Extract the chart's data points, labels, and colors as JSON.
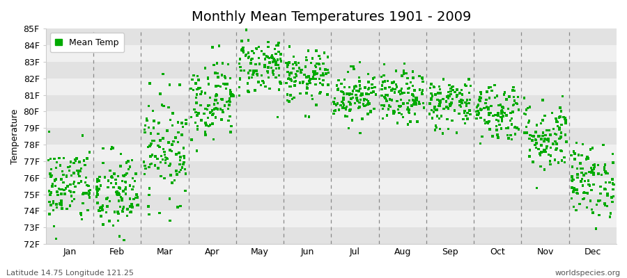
{
  "title": "Monthly Mean Temperatures 1901 - 2009",
  "ylabel": "Temperature",
  "xlabel_labels": [
    "Jan",
    "Feb",
    "Mar",
    "Apr",
    "May",
    "Jun",
    "Jul",
    "Aug",
    "Sep",
    "Oct",
    "Nov",
    "Dec"
  ],
  "ytick_labels": [
    "72F",
    "73F",
    "74F",
    "75F",
    "76F",
    "77F",
    "78F",
    "79F",
    "80F",
    "81F",
    "82F",
    "83F",
    "84F",
    "85F"
  ],
  "ytick_values": [
    72,
    73,
    74,
    75,
    76,
    77,
    78,
    79,
    80,
    81,
    82,
    83,
    84,
    85
  ],
  "ylim": [
    72,
    85
  ],
  "years": 109,
  "marker_color": "#00aa00",
  "marker": "s",
  "marker_size": 2.5,
  "legend_label": "Mean Temp",
  "footnote_left": "Latitude 14.75 Longitude 121.25",
  "footnote_right": "worldspecies.org",
  "bg_color": "#ffffff",
  "plot_bg_color": "#f0f0f0",
  "alt_band_color": "#e2e2e2",
  "dashed_line_color": "#888888",
  "title_fontsize": 14,
  "axis_fontsize": 9,
  "tick_fontsize": 9,
  "monthly_means": [
    75.5,
    75.0,
    77.8,
    80.8,
    82.8,
    82.0,
    81.0,
    80.8,
    80.5,
    80.0,
    78.5,
    75.8
  ],
  "monthly_stds": [
    1.2,
    1.3,
    1.6,
    1.2,
    0.9,
    0.8,
    0.8,
    0.8,
    0.8,
    0.9,
    1.1,
    1.1
  ]
}
